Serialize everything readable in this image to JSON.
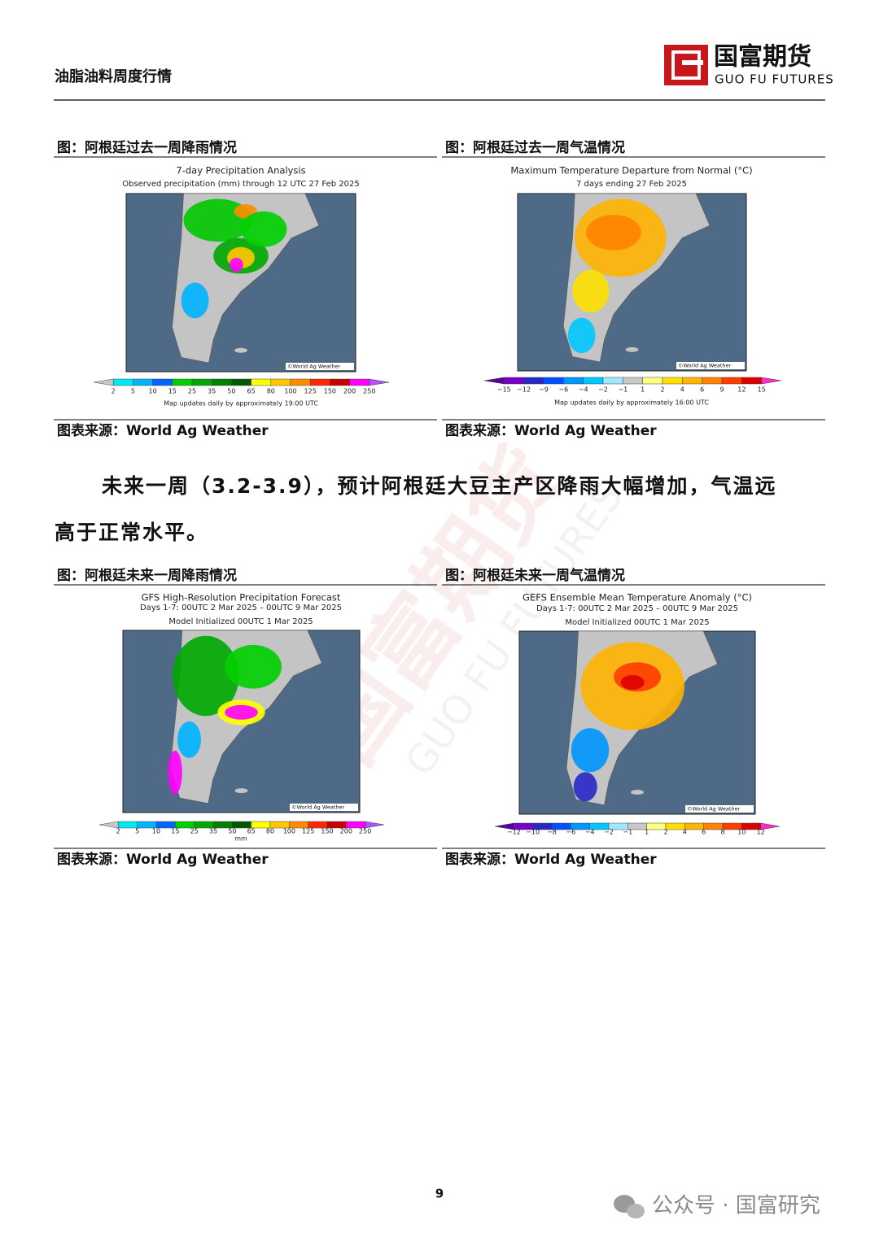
{
  "header": {
    "title": "油脂油料周度行情",
    "logo_cn": "国富期货",
    "logo_en": "GUO FU FUTURES"
  },
  "figures": [
    {
      "caption": "图：阿根廷过去一周降雨情况",
      "map_title": [
        "7-day Precipitation Analysis",
        "Observed precipitation (mm) through 12 UTC 27 Feb 2025"
      ],
      "colorbar_labels": [
        "2",
        "5",
        "10",
        "15",
        "25",
        "35",
        "50",
        "65",
        "80",
        "100",
        "125",
        "150",
        "200",
        "250"
      ],
      "colorbar_note": "Map updates daily by approximately 19:00 UTC",
      "credit": "©World Ag Weather",
      "source": "图表来源：World Ag Weather"
    },
    {
      "caption": "图：阿根廷过去一周气温情况",
      "map_title": [
        "Maximum Temperature Departure from Normal (°C)",
        "7 days ending 27 Feb 2025"
      ],
      "colorbar_labels": [
        "−15",
        "−12",
        "−9",
        "−6",
        "−4",
        "−2",
        "−1",
        "1",
        "2",
        "4",
        "6",
        "9",
        "12",
        "15"
      ],
      "colorbar_note": "Map updates daily by approximately 16:00 UTC",
      "credit": "©World Ag Weather",
      "source": "图表来源：World Ag Weather"
    },
    {
      "caption": "图：阿根廷未来一周降雨情况",
      "map_title": [
        "GFS High-Resolution Precipitation Forecast",
        "Days 1-7: 00UTC 2 Mar 2025 – 00UTC 9 Mar 2025",
        "Model Initialized 00UTC 1 Mar 2025"
      ],
      "colorbar_labels": [
        "2",
        "5",
        "10",
        "15",
        "25",
        "35",
        "50",
        "65",
        "80",
        "100",
        "125",
        "150",
        "200",
        "250"
      ],
      "colorbar_note": "mm",
      "credit": "©World Ag Weather",
      "source": "图表来源：World Ag Weather"
    },
    {
      "caption": "图：阿根廷未来一周气温情况",
      "map_title": [
        "GEFS Ensemble Mean Temperature Anomaly (°C)",
        "Days 1-7: 00UTC 2 Mar 2025 – 00UTC 9 Mar 2025",
        "Model Initialized 00UTC 1 Mar 2025"
      ],
      "colorbar_labels": [
        "−12",
        "−10",
        "−8",
        "−6",
        "−4",
        "−2",
        "−1",
        "1",
        "2",
        "4",
        "6",
        "8",
        "10",
        "12"
      ],
      "credit": "©World Ag Weather",
      "source": "图表来源：World Ag Weather"
    }
  ],
  "paragraph": [
    "未来一周（3.2-3.9），预计阿根廷大豆主产区降雨大幅增加，气温远",
    "高于正常水平。"
  ],
  "watermark": {
    "cn": "国富期货",
    "en": "GUO FU FUTURES"
  },
  "page_number": "9",
  "footer": "公众号 · 国富研究"
}
